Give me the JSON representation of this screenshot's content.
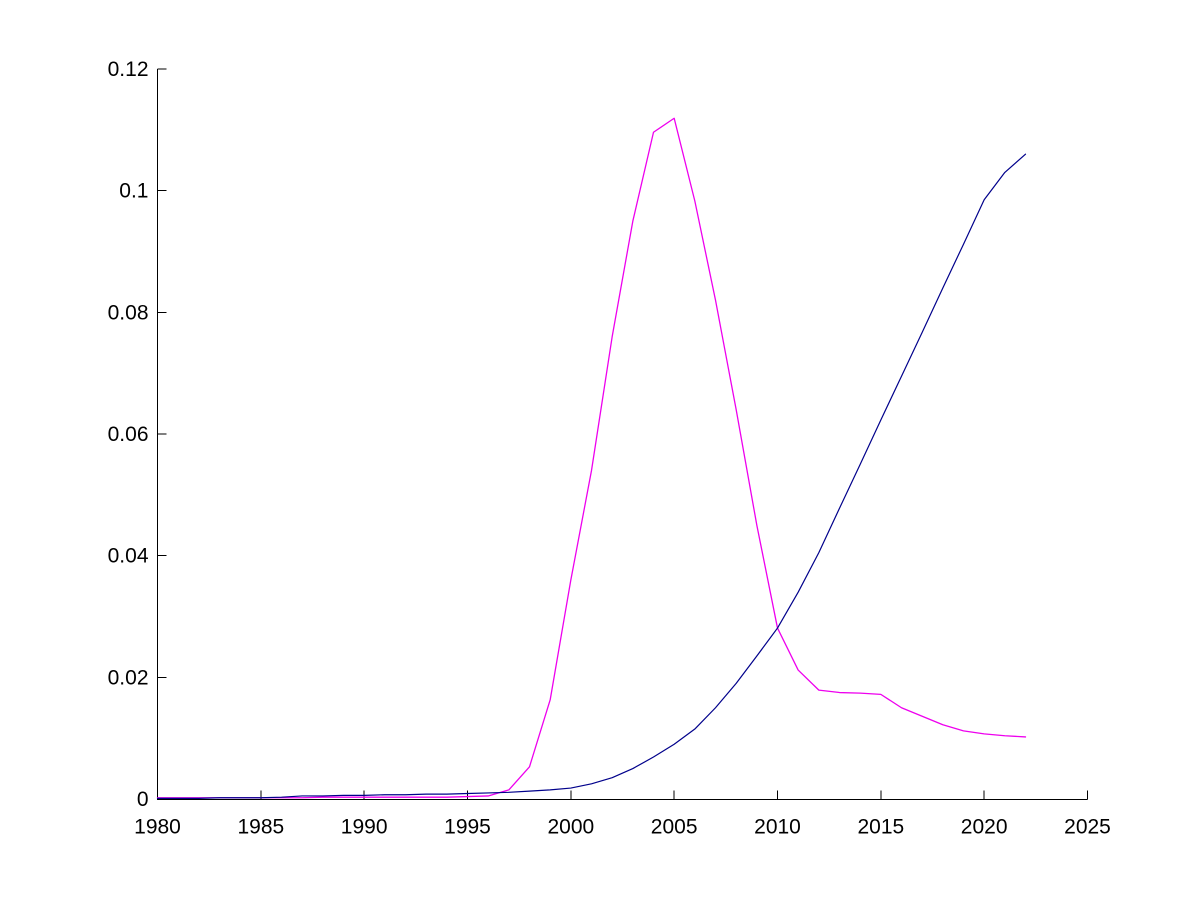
{
  "figure": {
    "background_color": "#ffffff",
    "axis_color": "#000000",
    "tick_label_color": "#000000"
  },
  "chart_data": {
    "type": "line",
    "title": "",
    "xlabel": "",
    "ylabel": "",
    "grid": false,
    "legend": null,
    "box": "L-shaped (left and bottom axes only, ticks pointing inward)",
    "xlim": [
      1980,
      2025
    ],
    "ylim": [
      0,
      0.12
    ],
    "x_ticks": [
      1980,
      1985,
      1990,
      1995,
      2000,
      2005,
      2010,
      2015,
      2020,
      2025
    ],
    "x_tick_labels": [
      "1980",
      "1985",
      "1990",
      "1995",
      "2000",
      "2005",
      "2010",
      "2015",
      "2020",
      "2025"
    ],
    "y_ticks": [
      0,
      0.02,
      0.04,
      0.06,
      0.08,
      0.1,
      0.12
    ],
    "y_tick_labels": [
      "0",
      "0.02",
      "0.04",
      "0.06",
      "0.08",
      "0.1",
      "0.12"
    ],
    "x": [
      1980,
      1981,
      1982,
      1983,
      1984,
      1985,
      1986,
      1987,
      1988,
      1989,
      1990,
      1991,
      1992,
      1993,
      1994,
      1995,
      1996,
      1997,
      1998,
      1999,
      2000,
      2001,
      2002,
      2003,
      2004,
      2005,
      2006,
      2007,
      2008,
      2009,
      2010,
      2011,
      2012,
      2013,
      2014,
      2015,
      2016,
      2017,
      2018,
      2019,
      2020,
      2021,
      2022
    ],
    "series": [
      {
        "name": "magenta-series",
        "color": "#EE00EE",
        "stroke_width": 1.3,
        "values": [
          0.0002,
          0.0002,
          0.0002,
          0.0002,
          0.0002,
          0.0002,
          0.0002,
          0.0002,
          0.0003,
          0.0003,
          0.0003,
          0.0003,
          0.0003,
          0.0003,
          0.0003,
          0.0004,
          0.0005,
          0.0015,
          0.0053,
          0.0163,
          0.036,
          0.054,
          0.076,
          0.095,
          0.1096,
          0.1119,
          0.0983,
          0.082,
          0.064,
          0.045,
          0.0281,
          0.0212,
          0.0179,
          0.0175,
          0.0174,
          0.0172,
          0.015,
          0.0136,
          0.0122,
          0.0112,
          0.0107,
          0.0104,
          0.0102
        ]
      },
      {
        "name": "blue-series",
        "color": "#00008B",
        "stroke_width": 1.2,
        "values": [
          0.0001,
          0.0001,
          0.0001,
          0.0002,
          0.0002,
          0.0002,
          0.0003,
          0.0005,
          0.0005,
          0.0006,
          0.0006,
          0.0007,
          0.0007,
          0.0008,
          0.0008,
          0.0009,
          0.001,
          0.0011,
          0.0013,
          0.0015,
          0.0018,
          0.0025,
          0.0035,
          0.005,
          0.0069,
          0.009,
          0.0115,
          0.015,
          0.019,
          0.0235,
          0.0281,
          0.034,
          0.0405,
          0.0478,
          0.055,
          0.0623,
          0.0695,
          0.0767,
          0.084,
          0.0912,
          0.0985,
          0.103,
          0.106
        ]
      }
    ]
  }
}
